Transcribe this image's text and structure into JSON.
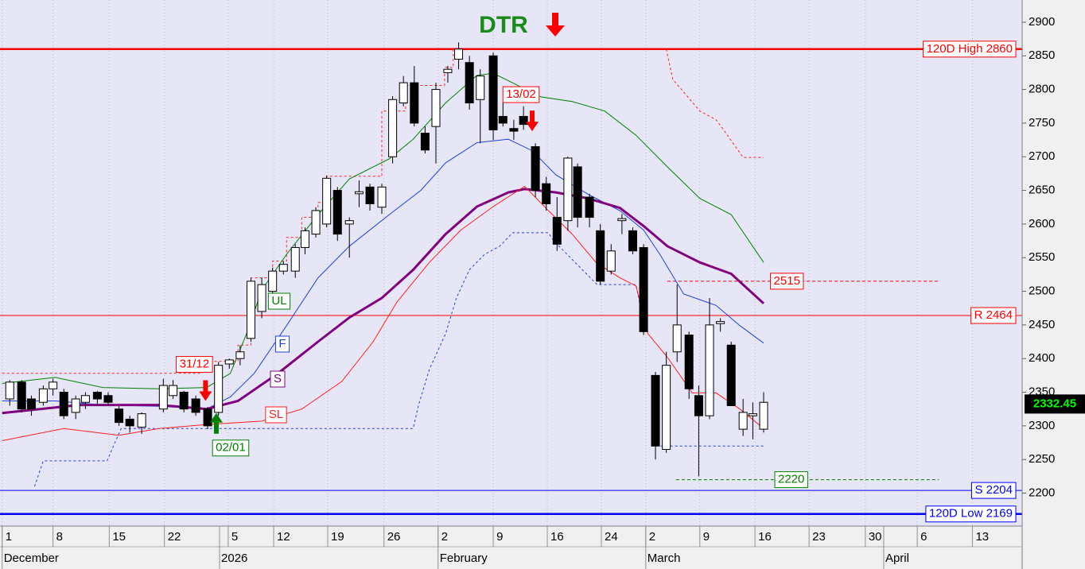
{
  "chart_data": {
    "type": "candlestick",
    "title": "DTR",
    "xlim": [
      -0.2,
      94.3
    ],
    "ylim": [
      2151,
      2933
    ],
    "yticks": [
      2200,
      2250,
      2300,
      2350,
      2400,
      2450,
      2500,
      2550,
      2600,
      2650,
      2700,
      2750,
      2800,
      2850,
      2900
    ],
    "grid": true,
    "xticks": [
      {
        "value": 0,
        "label": "1"
      },
      {
        "value": 4.7,
        "label": "8"
      },
      {
        "value": 9.9,
        "label": "15"
      },
      {
        "value": 15,
        "label": "22"
      },
      {
        "value": 20.9,
        "label": "5"
      },
      {
        "value": 25.1,
        "label": "12"
      },
      {
        "value": 30.1,
        "label": "19"
      },
      {
        "value": 35.3,
        "label": "26"
      },
      {
        "value": 40.3,
        "label": "2"
      },
      {
        "value": 45.4,
        "label": "9"
      },
      {
        "value": 50.4,
        "label": "16"
      },
      {
        "value": 55.4,
        "label": "24"
      },
      {
        "value": 59.5,
        "label": "2"
      },
      {
        "value": 64.5,
        "label": "9"
      },
      {
        "value": 69.6,
        "label": "16"
      },
      {
        "value": 74.6,
        "label": "23"
      },
      {
        "value": 79.8,
        "label": "30"
      },
      {
        "value": 84.6,
        "label": "6"
      },
      {
        "value": 89.7,
        "label": "13"
      }
    ],
    "month_ticks": [
      {
        "value": 0,
        "label": "December"
      },
      {
        "value": 20.1,
        "label": "2026"
      },
      {
        "value": 40.3,
        "label": "February"
      },
      {
        "value": 59.5,
        "label": "March"
      },
      {
        "value": 81.5,
        "label": "April"
      }
    ],
    "candles": {
      "x": [
        0.7,
        1.8,
        2.7,
        3.8,
        4.7,
        5.7,
        6.8,
        7.7,
        8.8,
        9.8,
        10.8,
        11.8,
        12.9,
        14.9,
        15.8,
        16.8,
        17.9,
        19.0,
        20.0,
        21.0,
        22.0,
        23.0,
        24.0,
        25.0,
        26.0,
        27.1,
        28.0,
        29.0,
        30.0,
        31.0,
        32.1,
        33.0,
        34.0,
        35.1,
        36.1,
        37.1,
        38.1,
        39.1,
        40.1,
        41.2,
        42.2,
        43.2,
        44.2,
        45.4,
        46.3,
        47.3,
        48.2,
        49.3,
        50.3,
        51.3,
        52.3,
        53.2,
        54.3,
        55.3,
        56.3,
        57.3,
        58.3,
        59.3,
        60.4,
        61.4,
        62.4,
        63.5,
        64.4,
        65.4,
        66.4,
        67.4,
        68.5,
        69.4,
        70.4
      ],
      "open": [
        2340,
        2365,
        2340,
        2335,
        2355,
        2350,
        2320,
        2335,
        2350,
        2345,
        2325,
        2310,
        2298,
        2325,
        2345,
        2350,
        2340,
        2325,
        2320,
        2392,
        2400,
        2430,
        2470,
        2500,
        2530,
        2530,
        2565,
        2585,
        2600,
        2650,
        2600,
        2645,
        2655,
        2625,
        2700,
        2780,
        2810,
        2735,
        2745,
        2825,
        2845,
        2840,
        2785,
        2850,
        2760,
        2742,
        2760,
        2715,
        2660,
        2610,
        2605,
        2685,
        2640,
        2590,
        2530,
        2605,
        2590,
        2565,
        2375,
        2265,
        2410,
        2435,
        2345,
        2315,
        2452,
        2420,
        2295,
        2315,
        2295
      ],
      "high": [
        2368,
        2368,
        2345,
        2360,
        2370,
        2355,
        2345,
        2350,
        2352,
        2350,
        2330,
        2315,
        2320,
        2370,
        2368,
        2352,
        2345,
        2328,
        2395,
        2400,
        2420,
        2520,
        2520,
        2535,
        2545,
        2570,
        2595,
        2625,
        2672,
        2655,
        2610,
        2665,
        2660,
        2660,
        2790,
        2820,
        2835,
        2745,
        2810,
        2835,
        2870,
        2850,
        2830,
        2855,
        2780,
        2755,
        2775,
        2720,
        2670,
        2640,
        2700,
        2690,
        2645,
        2600,
        2570,
        2615,
        2595,
        2570,
        2380,
        2410,
        2510,
        2440,
        2360,
        2490,
        2460,
        2425,
        2340,
        2335,
        2350
      ],
      "low": [
        2330,
        2320,
        2315,
        2330,
        2345,
        2310,
        2310,
        2325,
        2330,
        2330,
        2300,
        2290,
        2288,
        2320,
        2340,
        2320,
        2315,
        2295,
        2315,
        2385,
        2390,
        2425,
        2460,
        2495,
        2525,
        2520,
        2555,
        2580,
        2595,
        2575,
        2550,
        2625,
        2620,
        2615,
        2690,
        2775,
        2745,
        2705,
        2690,
        2810,
        2830,
        2770,
        2720,
        2725,
        2745,
        2725,
        2740,
        2640,
        2620,
        2560,
        2590,
        2595,
        2595,
        2510,
        2525,
        2585,
        2555,
        2435,
        2250,
        2260,
        2395,
        2340,
        2225,
        2310,
        2440,
        2330,
        2285,
        2280,
        2290
      ],
      "close": [
        2365,
        2325,
        2325,
        2355,
        2365,
        2315,
        2340,
        2345,
        2340,
        2335,
        2305,
        2300,
        2318,
        2360,
        2360,
        2325,
        2320,
        2300,
        2390,
        2398,
        2410,
        2515,
        2510,
        2530,
        2540,
        2565,
        2590,
        2620,
        2668,
        2585,
        2605,
        2648,
        2630,
        2655,
        2785,
        2810,
        2750,
        2710,
        2800,
        2830,
        2860,
        2780,
        2820,
        2740,
        2750,
        2738,
        2748,
        2650,
        2630,
        2570,
        2698,
        2610,
        2610,
        2515,
        2560,
        2608,
        2560,
        2440,
        2270,
        2390,
        2450,
        2355,
        2315,
        2450,
        2455,
        2330,
        2320,
        2318,
        2335
      ]
    },
    "series": [
      {
        "name": "UL",
        "color": "#008000",
        "width": 1,
        "x": [
          0,
          4.9,
          9.3,
          14.5,
          18.9,
          21.1,
          22.6,
          24.0,
          26.3,
          29.2,
          32.1,
          35.8,
          38.0,
          41.0,
          43.9,
          45.4,
          46.8,
          49.8,
          52.7,
          55.7,
          58.6,
          61.5,
          64.5,
          67.4,
          70.4
        ],
        "values": [
          2363,
          2372,
          2357,
          2355,
          2357,
          2378,
          2437,
          2502,
          2555,
          2614,
          2667,
          2697,
          2726,
          2780,
          2821,
          2824,
          2813,
          2789,
          2782,
          2768,
          2732,
          2685,
          2638,
          2614,
          2543
        ]
      },
      {
        "name": "F",
        "color": "#2040e0",
        "width": 1,
        "x": [
          0,
          4.9,
          9.3,
          14.5,
          18.9,
          21.1,
          23.3,
          26.3,
          29.2,
          32.1,
          35.8,
          38.7,
          41.0,
          43.9,
          46.8,
          49.0,
          51.2,
          54.2,
          57.1,
          59.3,
          60.8,
          63.0,
          66.0,
          68.2,
          70.4
        ],
        "values": [
          2337,
          2337,
          2331,
          2329,
          2325,
          2343,
          2378,
          2449,
          2520,
          2567,
          2614,
          2650,
          2691,
          2721,
          2726,
          2709,
          2673,
          2644,
          2620,
          2591,
          2555,
          2496,
          2479,
          2449,
          2423
        ]
      },
      {
        "name": "S",
        "color": "#800080",
        "width": 3,
        "x": [
          0,
          7.1,
          14.5,
          18.9,
          21.8,
          25.5,
          29.2,
          32.1,
          35.1,
          38.0,
          41.0,
          43.9,
          46.8,
          48.3,
          51.2,
          54.2,
          57.1,
          59.3,
          61.5,
          64.5,
          67.4,
          70.4
        ],
        "values": [
          2319,
          2331,
          2331,
          2325,
          2337,
          2378,
          2425,
          2461,
          2490,
          2532,
          2585,
          2626,
          2647,
          2652,
          2647,
          2638,
          2624,
          2597,
          2567,
          2543,
          2526,
          2482
        ]
      },
      {
        "name": "SL",
        "color": "#ff2020",
        "width": 1,
        "x": [
          0,
          5.7,
          10.8,
          14.5,
          18.9,
          24.0,
          27.7,
          31.4,
          34.3,
          36.5,
          39.5,
          42.4,
          45.4,
          48.3,
          50.5,
          52.7,
          54.9,
          57.1,
          58.6,
          59.7,
          61.5,
          63.8,
          66.0,
          68.2,
          70.4
        ],
        "values": [
          2278,
          2296,
          2286,
          2296,
          2302,
          2307,
          2325,
          2366,
          2425,
          2484,
          2543,
          2591,
          2626,
          2656,
          2620,
          2585,
          2543,
          2520,
          2508,
          2437,
          2402,
          2349,
          2349,
          2325,
          2296
        ]
      }
    ],
    "stops": [
      {
        "color": "#ff2020",
        "x": [
          0,
          18.5,
          18.5,
          21.8,
          21.8,
          23,
          23,
          25,
          25,
          26.3,
          26.3,
          27.7,
          27.7,
          29.2,
          29.2,
          30,
          30,
          35.1,
          35.1,
          37.3,
          37.3,
          40.9,
          40.9,
          41.7,
          41.7,
          null,
          61.4,
          62,
          64.5,
          66,
          66.7,
          68.5,
          70.4
        ],
        "values": [
          2378,
          2378,
          2396,
          2396,
          2420,
          2420,
          2520,
          2520,
          2545,
          2545,
          2580,
          2580,
          2610,
          2610,
          2632,
          2632,
          2671,
          2671,
          2768,
          2768,
          2806,
          2806,
          2833,
          2833,
          2860,
          null,
          2860,
          2815,
          2768,
          2755,
          2740,
          2699,
          2699
        ]
      },
      {
        "color": "#2040e0",
        "x": [
          3,
          3.8,
          9.7,
          10.5,
          11,
          38,
          38.5,
          39.5,
          41,
          42,
          43.2,
          44.6,
          46,
          47.2,
          50.5,
          51,
          55,
          58.6,
          59.2,
          null,
          60,
          70.4
        ],
        "values": [
          2210,
          2248,
          2248,
          2278,
          2296,
          2296,
          2331,
          2384,
          2437,
          2490,
          2532,
          2555,
          2567,
          2587,
          2587,
          2575,
          2510,
          2510,
          2460,
          null,
          2270,
          2270
        ]
      }
    ],
    "levels": [
      {
        "label": "120D High 2860",
        "value": 2860,
        "color": "#ff0000",
        "width": 2.5
      },
      {
        "label": "R 2464",
        "value": 2464,
        "color": "#ff0000",
        "width": 1
      },
      {
        "label": "S 2204",
        "value": 2204,
        "color": "#0000ff",
        "width": 1
      },
      {
        "label": "120D Low 2169",
        "value": 2169,
        "color": "#0000ff",
        "width": 2.5
      }
    ],
    "dashed_levels": [
      {
        "value": 2515,
        "color": "#ff0000",
        "from": 61.5,
        "to": 86.6
      },
      {
        "value": 2220,
        "color": "#008000",
        "from": 62.3,
        "to": 86.6
      }
    ],
    "annotations": [
      {
        "text": "31/12",
        "x": 18.8,
        "y": 2337,
        "direction": "down",
        "color": "#ff0000"
      },
      {
        "text": "02/01",
        "x": 19.8,
        "y": 2319,
        "direction": "up",
        "color": "#008000"
      },
      {
        "text": "13/02",
        "x": 49.0,
        "y": 2738,
        "direction": "down",
        "color": "#ff0000"
      }
    ],
    "last_price": 2332.45
  }
}
